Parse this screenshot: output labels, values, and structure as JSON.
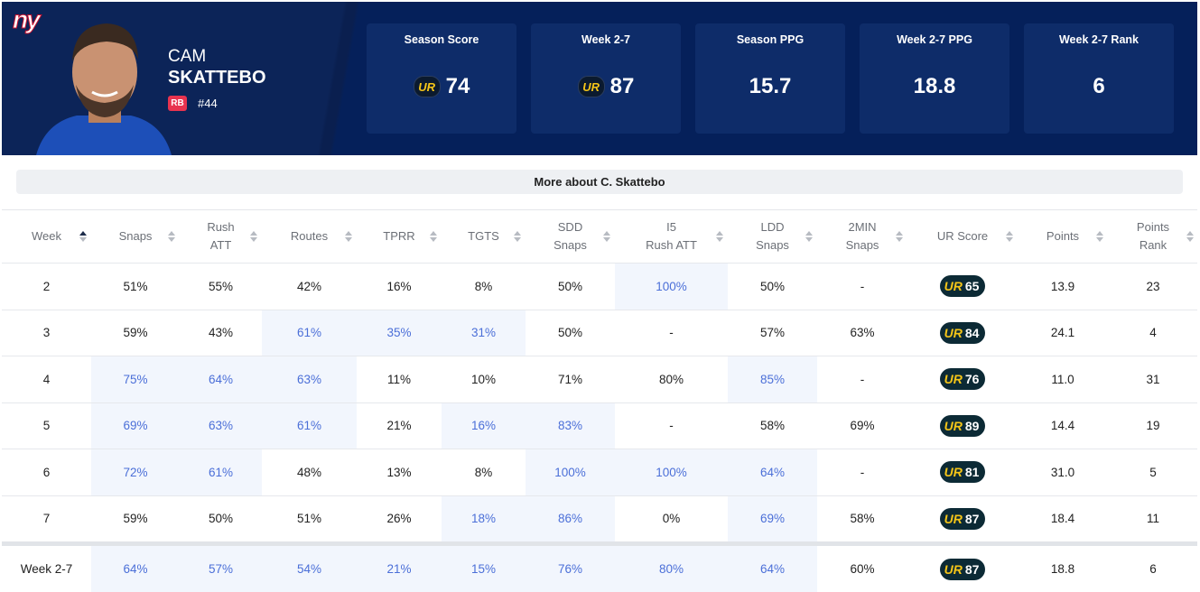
{
  "header": {
    "logo": "ny",
    "first_name": "CAM",
    "last_name": "SKATTEBO",
    "position": "RB",
    "number": "#44"
  },
  "cards": [
    {
      "label": "Season Score",
      "badge": "UR",
      "value": "74"
    },
    {
      "label": "Week 2-7",
      "badge": "UR",
      "value": "87"
    },
    {
      "label": "Season PPG",
      "value": "15.7"
    },
    {
      "label": "Week 2-7 PPG",
      "value": "18.8"
    },
    {
      "label": "Week 2-7 Rank",
      "value": "6"
    }
  ],
  "button": "More about C. Skattebo",
  "table": {
    "columns": [
      [
        "Week"
      ],
      [
        "Snaps"
      ],
      [
        "Rush",
        "ATT"
      ],
      [
        "Routes"
      ],
      [
        "TPRR"
      ],
      [
        "TGTS"
      ],
      [
        "SDD",
        "Snaps"
      ],
      [
        "I5",
        "Rush ATT"
      ],
      [
        "LDD",
        "Snaps"
      ],
      [
        "2MIN",
        "Snaps"
      ],
      [
        "UR Score"
      ],
      [
        "Points"
      ],
      [
        "Points",
        "Rank"
      ]
    ],
    "sorted_column": 0,
    "score_column": 10,
    "score_badge": "UR",
    "rows": [
      {
        "cells": [
          "2",
          "51%",
          "55%",
          "42%",
          "16%",
          "8%",
          "50%",
          "100%",
          "50%",
          "-",
          "65",
          "13.9",
          "23"
        ],
        "highlight": [
          7
        ]
      },
      {
        "cells": [
          "3",
          "59%",
          "43%",
          "61%",
          "35%",
          "31%",
          "50%",
          "-",
          "57%",
          "63%",
          "84",
          "24.1",
          "4"
        ],
        "highlight": [
          3,
          4,
          5
        ]
      },
      {
        "cells": [
          "4",
          "75%",
          "64%",
          "63%",
          "11%",
          "10%",
          "71%",
          "80%",
          "85%",
          "-",
          "76",
          "11.0",
          "31"
        ],
        "highlight": [
          1,
          2,
          3,
          8
        ]
      },
      {
        "cells": [
          "5",
          "69%",
          "63%",
          "61%",
          "21%",
          "16%",
          "83%",
          "-",
          "58%",
          "69%",
          "89",
          "14.4",
          "19"
        ],
        "highlight": [
          1,
          2,
          3,
          5,
          6
        ]
      },
      {
        "cells": [
          "6",
          "72%",
          "61%",
          "48%",
          "13%",
          "8%",
          "100%",
          "100%",
          "64%",
          "-",
          "81",
          "31.0",
          "5"
        ],
        "highlight": [
          1,
          2,
          6,
          7,
          8
        ]
      },
      {
        "cells": [
          "7",
          "59%",
          "50%",
          "51%",
          "26%",
          "18%",
          "86%",
          "0%",
          "69%",
          "58%",
          "87",
          "18.4",
          "11"
        ],
        "highlight": [
          5,
          6,
          8
        ]
      }
    ],
    "summary": {
      "cells": [
        "Week 2-7",
        "64%",
        "57%",
        "54%",
        "21%",
        "15%",
        "76%",
        "80%",
        "64%",
        "60%",
        "87",
        "18.8",
        "6"
      ],
      "highlight": [
        1,
        2,
        3,
        4,
        5,
        6,
        7,
        8
      ]
    }
  }
}
